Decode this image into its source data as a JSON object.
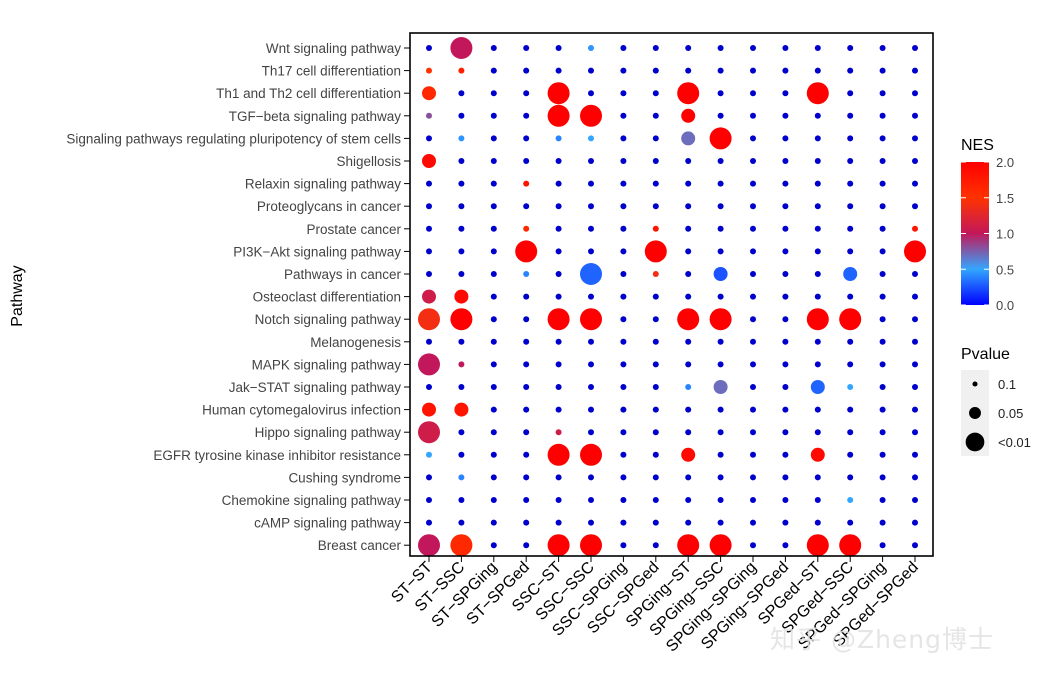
{
  "chart_data": {
    "type": "scatter",
    "title": "",
    "xlabel": "",
    "ylabel": "Pathway",
    "comparisons": [
      "ST−ST",
      "ST−SSC",
      "ST−SPGing",
      "ST−SPGed",
      "SSC−ST",
      "SSC−SSC",
      "SSC−SPGing",
      "SSC−SPGed",
      "SPGing−ST",
      "SPGing−SSC",
      "SPGing−SPGing",
      "SPGing−SPGed",
      "SPGed−ST",
      "SPGed−SSC",
      "SPGed−SPGing",
      "SPGed−SPGed"
    ],
    "pathways": [
      "Wnt signaling pathway",
      "Th17 cell differentiation",
      "Th1 and Th2 cell differentiation",
      "TGF−beta signaling pathway",
      "Signaling pathways regulating pluripotency of stem cells",
      "Shigellosis",
      "Relaxin signaling pathway",
      "Proteoglycans in cancer",
      "Prostate cancer",
      "PI3K−Akt signaling pathway",
      "Pathways in cancer",
      "Osteoclast differentiation",
      "Notch signaling pathway",
      "Melanogenesis",
      "MAPK signaling pathway",
      "Jak−STAT signaling pathway",
      "Human cytomegalovirus infection",
      "Hippo signaling pathway",
      "EGFR tyrosine kinase inhibitor resistance",
      "Cushing syndrome",
      "Chemokine signaling pathway",
      "cAMP signaling pathway",
      "Breast cancer"
    ],
    "default_point": {
      "nes": 0.0,
      "pvalue": "0.1"
    },
    "points": [
      {
        "pathway": "Wnt signaling pathway",
        "comparison": "ST−SSC",
        "nes": 1.0,
        "pvalue": "<0.01"
      },
      {
        "pathway": "Wnt signaling pathway",
        "comparison": "SSC−SSC",
        "nes": 0.45,
        "pvalue": "0.1"
      },
      {
        "pathway": "Th17 cell differentiation",
        "comparison": "ST−ST",
        "nes": 1.5,
        "pvalue": "0.1"
      },
      {
        "pathway": "Th17 cell differentiation",
        "comparison": "ST−SSC",
        "nes": 1.7,
        "pvalue": "0.1"
      },
      {
        "pathway": "Th1 and Th2 cell differentiation",
        "comparison": "ST−ST",
        "nes": 1.6,
        "pvalue": "0.05"
      },
      {
        "pathway": "Th1 and Th2 cell differentiation",
        "comparison": "SSC−ST",
        "nes": 2.0,
        "pvalue": "<0.01"
      },
      {
        "pathway": "Th1 and Th2 cell differentiation",
        "comparison": "SPGing−ST",
        "nes": 2.0,
        "pvalue": "<0.01"
      },
      {
        "pathway": "Th1 and Th2 cell differentiation",
        "comparison": "SPGed−ST",
        "nes": 2.0,
        "pvalue": "<0.01"
      },
      {
        "pathway": "TGF−beta signaling pathway",
        "comparison": "ST−ST",
        "nes": 0.8,
        "pvalue": "0.1"
      },
      {
        "pathway": "TGF−beta signaling pathway",
        "comparison": "SSC−ST",
        "nes": 2.0,
        "pvalue": "<0.01"
      },
      {
        "pathway": "TGF−beta signaling pathway",
        "comparison": "SSC−SSC",
        "nes": 2.0,
        "pvalue": "<0.01"
      },
      {
        "pathway": "TGF−beta signaling pathway",
        "comparison": "SPGing−ST",
        "nes": 2.0,
        "pvalue": "0.05"
      },
      {
        "pathway": "Signaling pathways regulating pluripotency of stem cells",
        "comparison": "ST−SSC",
        "nes": 0.45,
        "pvalue": "0.1"
      },
      {
        "pathway": "Signaling pathways regulating pluripotency of stem cells",
        "comparison": "SSC−ST",
        "nes": 0.4,
        "pvalue": "0.1"
      },
      {
        "pathway": "Signaling pathways regulating pluripotency of stem cells",
        "comparison": "SSC−SSC",
        "nes": 0.5,
        "pvalue": "0.1"
      },
      {
        "pathway": "Signaling pathways regulating pluripotency of stem cells",
        "comparison": "SPGing−ST",
        "nes": 0.7,
        "pvalue": "0.05"
      },
      {
        "pathway": "Signaling pathways regulating pluripotency of stem cells",
        "comparison": "SPGing−SSC",
        "nes": 2.0,
        "pvalue": "<0.01"
      },
      {
        "pathway": "Shigellosis",
        "comparison": "ST−ST",
        "nes": 1.9,
        "pvalue": "0.05"
      },
      {
        "pathway": "Relaxin signaling pathway",
        "comparison": "ST−SPGed",
        "nes": 1.8,
        "pvalue": "0.1"
      },
      {
        "pathway": "Prostate cancer",
        "comparison": "ST−SPGed",
        "nes": 1.6,
        "pvalue": "0.1"
      },
      {
        "pathway": "Prostate cancer",
        "comparison": "SSC−SPGed",
        "nes": 1.8,
        "pvalue": "0.1"
      },
      {
        "pathway": "Prostate cancer",
        "comparison": "SPGed−SPGed",
        "nes": 1.8,
        "pvalue": "0.1"
      },
      {
        "pathway": "PI3K−Akt signaling pathway",
        "comparison": "ST−SPGed",
        "nes": 2.0,
        "pvalue": "<0.01"
      },
      {
        "pathway": "PI3K−Akt signaling pathway",
        "comparison": "SSC−SPGed",
        "nes": 2.0,
        "pvalue": "<0.01"
      },
      {
        "pathway": "PI3K−Akt signaling pathway",
        "comparison": "SPGed−SPGed",
        "nes": 2.0,
        "pvalue": "<0.01"
      },
      {
        "pathway": "Pathways in cancer",
        "comparison": "ST−SPGed",
        "nes": 0.4,
        "pvalue": "0.1"
      },
      {
        "pathway": "Pathways in cancer",
        "comparison": "SSC−SSC",
        "nes": 0.3,
        "pvalue": "<0.01"
      },
      {
        "pathway": "Pathways in cancer",
        "comparison": "SSC−SPGed",
        "nes": 1.4,
        "pvalue": "0.1"
      },
      {
        "pathway": "Pathways in cancer",
        "comparison": "SPGing−SSC",
        "nes": 0.25,
        "pvalue": "0.05"
      },
      {
        "pathway": "Pathways in cancer",
        "comparison": "SPGed−SSC",
        "nes": 0.3,
        "pvalue": "0.05"
      },
      {
        "pathway": "Osteoclast differentiation",
        "comparison": "ST−ST",
        "nes": 1.1,
        "pvalue": "0.05"
      },
      {
        "pathway": "Osteoclast differentiation",
        "comparison": "ST−SSC",
        "nes": 1.9,
        "pvalue": "0.05"
      },
      {
        "pathway": "Notch signaling pathway",
        "comparison": "ST−ST",
        "nes": 1.4,
        "pvalue": "<0.01"
      },
      {
        "pathway": "Notch signaling pathway",
        "comparison": "ST−SSC",
        "nes": 2.0,
        "pvalue": "<0.01"
      },
      {
        "pathway": "Notch signaling pathway",
        "comparison": "SSC−ST",
        "nes": 2.0,
        "pvalue": "<0.01"
      },
      {
        "pathway": "Notch signaling pathway",
        "comparison": "SSC−SSC",
        "nes": 2.0,
        "pvalue": "<0.01"
      },
      {
        "pathway": "Notch signaling pathway",
        "comparison": "SPGing−ST",
        "nes": 2.0,
        "pvalue": "<0.01"
      },
      {
        "pathway": "Notch signaling pathway",
        "comparison": "SPGing−SSC",
        "nes": 2.0,
        "pvalue": "<0.01"
      },
      {
        "pathway": "Notch signaling pathway",
        "comparison": "SPGed−ST",
        "nes": 2.0,
        "pvalue": "<0.01"
      },
      {
        "pathway": "Notch signaling pathway",
        "comparison": "SPGed−SSC",
        "nes": 2.0,
        "pvalue": "<0.01"
      },
      {
        "pathway": "MAPK signaling pathway",
        "comparison": "ST−ST",
        "nes": 1.0,
        "pvalue": "<0.01"
      },
      {
        "pathway": "MAPK signaling pathway",
        "comparison": "ST−SSC",
        "nes": 1.0,
        "pvalue": "0.1"
      },
      {
        "pathway": "Jak−STAT signaling pathway",
        "comparison": "SPGing−ST",
        "nes": 0.4,
        "pvalue": "0.1"
      },
      {
        "pathway": "Jak−STAT signaling pathway",
        "comparison": "SPGing−SSC",
        "nes": 0.7,
        "pvalue": "0.05"
      },
      {
        "pathway": "Jak−STAT signaling pathway",
        "comparison": "SPGed−ST",
        "nes": 0.3,
        "pvalue": "0.05"
      },
      {
        "pathway": "Jak−STAT signaling pathway",
        "comparison": "SPGed−SSC",
        "nes": 0.5,
        "pvalue": "0.1"
      },
      {
        "pathway": "Human cytomegalovirus infection",
        "comparison": "ST−ST",
        "nes": 1.8,
        "pvalue": "0.05"
      },
      {
        "pathway": "Human cytomegalovirus infection",
        "comparison": "ST−SSC",
        "nes": 1.8,
        "pvalue": "0.05"
      },
      {
        "pathway": "Hippo signaling pathway",
        "comparison": "ST−ST",
        "nes": 1.1,
        "pvalue": "<0.01"
      },
      {
        "pathway": "Hippo signaling pathway",
        "comparison": "SSC−ST",
        "nes": 1.1,
        "pvalue": "0.1"
      },
      {
        "pathway": "EGFR tyrosine kinase inhibitor resistance",
        "comparison": "ST−ST",
        "nes": 0.5,
        "pvalue": "0.1"
      },
      {
        "pathway": "EGFR tyrosine kinase inhibitor resistance",
        "comparison": "SSC−ST",
        "nes": 2.0,
        "pvalue": "<0.01"
      },
      {
        "pathway": "EGFR tyrosine kinase inhibitor resistance",
        "comparison": "SSC−SSC",
        "nes": 2.0,
        "pvalue": "<0.01"
      },
      {
        "pathway": "EGFR tyrosine kinase inhibitor resistance",
        "comparison": "SPGing−ST",
        "nes": 1.9,
        "pvalue": "0.05"
      },
      {
        "pathway": "EGFR tyrosine kinase inhibitor resistance",
        "comparison": "SPGed−ST",
        "nes": 1.9,
        "pvalue": "0.05"
      },
      {
        "pathway": "Cushing syndrome",
        "comparison": "ST−SSC",
        "nes": 0.4,
        "pvalue": "0.1"
      },
      {
        "pathway": "Chemokine signaling pathway",
        "comparison": "SPGed−SSC",
        "nes": 0.5,
        "pvalue": "0.1"
      },
      {
        "pathway": "Breast cancer",
        "comparison": "ST−ST",
        "nes": 1.0,
        "pvalue": "<0.01"
      },
      {
        "pathway": "Breast cancer",
        "comparison": "ST−SSC",
        "nes": 1.6,
        "pvalue": "<0.01"
      },
      {
        "pathway": "Breast cancer",
        "comparison": "SSC−ST",
        "nes": 2.0,
        "pvalue": "<0.01"
      },
      {
        "pathway": "Breast cancer",
        "comparison": "SSC−SSC",
        "nes": 2.0,
        "pvalue": "<0.01"
      },
      {
        "pathway": "Breast cancer",
        "comparison": "SPGing−ST",
        "nes": 2.0,
        "pvalue": "<0.01"
      },
      {
        "pathway": "Breast cancer",
        "comparison": "SPGing−SSC",
        "nes": 2.0,
        "pvalue": "<0.01"
      },
      {
        "pathway": "Breast cancer",
        "comparison": "SPGed−ST",
        "nes": 2.0,
        "pvalue": "<0.01"
      },
      {
        "pathway": "Breast cancer",
        "comparison": "SPGed−SSC",
        "nes": 2.0,
        "pvalue": "<0.01"
      }
    ],
    "color_legend": {
      "title": "NES",
      "range": [
        0.0,
        2.0
      ],
      "ticks": [
        "0.0",
        "0.5",
        "1.0",
        "1.5",
        "2.0"
      ],
      "colors": [
        "#0000ff",
        "#33a6ff",
        "#c2185b",
        "#ff0000"
      ]
    },
    "size_legend": {
      "title": "Pvalue",
      "levels": [
        "0.1",
        "0.05",
        "<0.01"
      ]
    },
    "legend_position": "right"
  },
  "watermark": "知乎 @Zheng博士"
}
